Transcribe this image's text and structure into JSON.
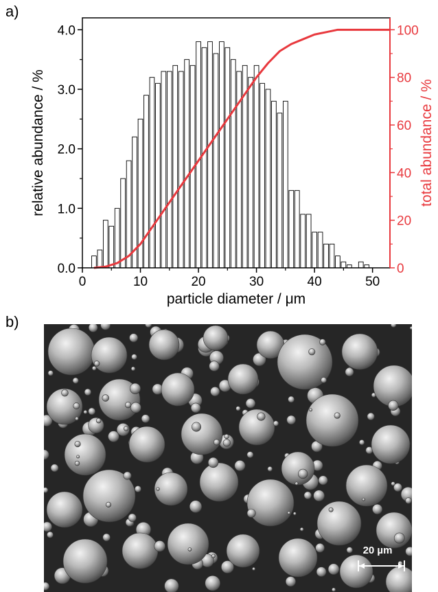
{
  "panel_labels": {
    "a": "a)",
    "b": "b)"
  },
  "chart_data": {
    "type": "bar",
    "xlabel": "particle diameter / μm",
    "ylabel": "relative abundance / %",
    "y2label": "total abundance / %",
    "xlim": [
      0,
      53
    ],
    "ylim": [
      0,
      4.2
    ],
    "y2lim": [
      0,
      105
    ],
    "xticks": [
      "0",
      "10",
      "20",
      "30",
      "40",
      "50"
    ],
    "yticks": [
      "0.0",
      "1.0",
      "2.0",
      "3.0",
      "4.0"
    ],
    "y2ticks": [
      "0",
      "20",
      "40",
      "60",
      "80",
      "100"
    ],
    "grid": false,
    "legend": "none",
    "colors": {
      "bars": "#000000",
      "cumulative": "#e8383d",
      "axis2": "#e8383d"
    },
    "series": [
      {
        "type": "bar",
        "axis": "left",
        "x": [
          2,
          3,
          4,
          5,
          6,
          7,
          8,
          9,
          10,
          11,
          12,
          13,
          14,
          15,
          16,
          17,
          18,
          19,
          20,
          21,
          22,
          23,
          24,
          25,
          26,
          27,
          28,
          29,
          30,
          31,
          32,
          33,
          34,
          35,
          36,
          37,
          38,
          39,
          40,
          41,
          42,
          43,
          44,
          45,
          46,
          47,
          48,
          49,
          50
        ],
        "values": [
          0.2,
          0.3,
          0.8,
          0.7,
          1.0,
          1.5,
          1.8,
          2.2,
          2.5,
          2.9,
          3.2,
          3.1,
          3.3,
          3.3,
          3.4,
          3.3,
          3.5,
          3.4,
          3.8,
          3.7,
          3.8,
          3.6,
          3.8,
          3.7,
          3.5,
          3.3,
          3.4,
          3.2,
          3.4,
          3.1,
          3.0,
          2.8,
          2.6,
          2.8,
          1.3,
          1.3,
          0.9,
          0.9,
          0.6,
          0.6,
          0.4,
          0.4,
          0.2,
          0.1,
          0.05,
          0.0,
          0.1,
          0.05,
          0.0
        ]
      },
      {
        "type": "line",
        "axis": "right",
        "x": [
          2,
          4,
          6,
          8,
          10,
          12,
          14,
          16,
          18,
          20,
          22,
          24,
          26,
          28,
          30,
          32,
          34,
          36,
          38,
          40,
          42,
          44,
          46,
          48,
          50,
          53
        ],
        "values": [
          0,
          0.5,
          2,
          5,
          10,
          17,
          24,
          31,
          38,
          45,
          52,
          59,
          66,
          73,
          80,
          86,
          91,
          94,
          96,
          98,
          99,
          100,
          100,
          100,
          100,
          100
        ]
      }
    ]
  },
  "image": {
    "description_icon": "sem-micrograph",
    "scale_bar_label": "20 µm"
  }
}
